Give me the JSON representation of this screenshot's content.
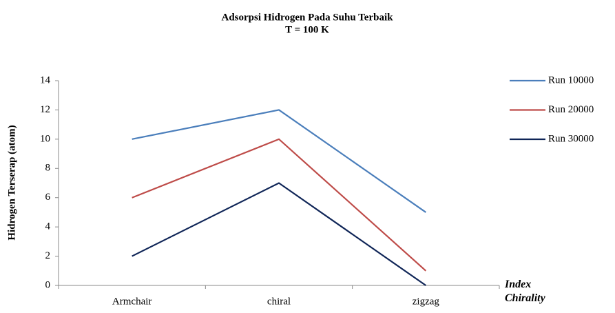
{
  "chart_data": {
    "type": "line",
    "title": "Adsorpsi Hidrogen  Pada Suhu Terbaik",
    "subtitle": "T = 100 K",
    "y_label": "Hidrogen Terserap (atom)",
    "x_label": "Index Chirality",
    "categories": [
      "Armchair",
      "chiral",
      "zigzag"
    ],
    "series": [
      {
        "name": "Run 10000",
        "color": "#4a7ebb",
        "values": [
          10,
          12,
          5
        ]
      },
      {
        "name": "Run 20000",
        "color": "#be4b48",
        "values": [
          6,
          10,
          1
        ]
      },
      {
        "name": "Run 30000",
        "color": "#0f2557",
        "values": [
          2,
          7,
          0
        ]
      }
    ],
    "ylim": [
      0,
      14
    ],
    "yticks": [
      0,
      2,
      4,
      6,
      8,
      10,
      12,
      14
    ],
    "grid": false,
    "legend": "right"
  }
}
